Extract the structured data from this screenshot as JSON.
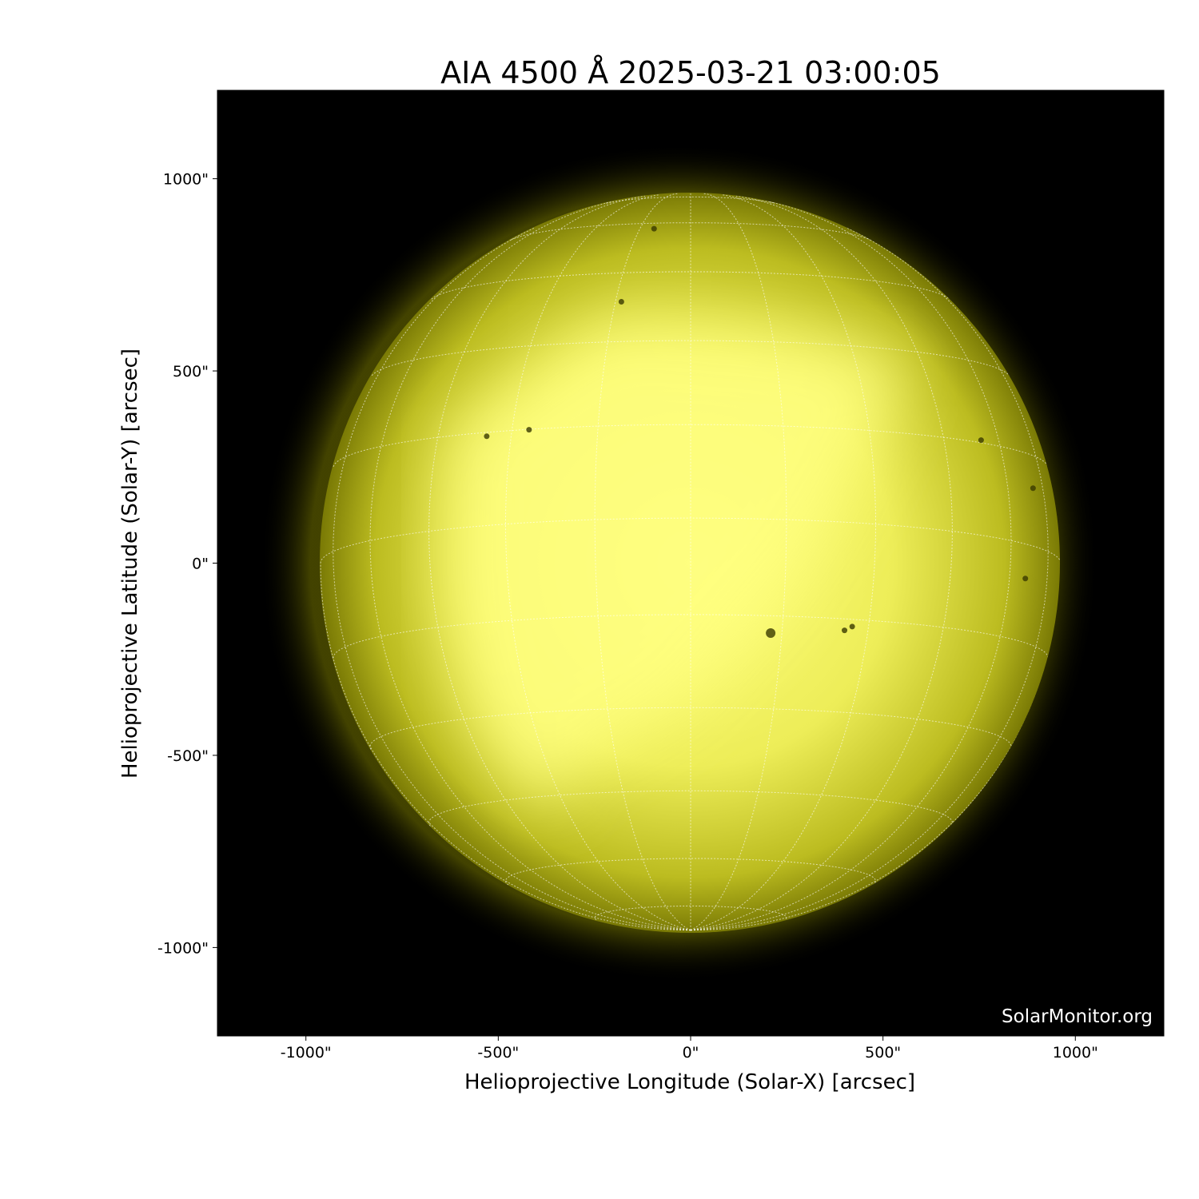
{
  "chart_data": {
    "type": "heatmap",
    "title": "AIA 4500 Å 2025-03-21 03:00:05",
    "xlabel": "Helioprojective Longitude (Solar-X) [arcsec]",
    "ylabel": "Helioprojective Latitude (Solar-Y) [arcsec]",
    "xlim": [
      -1230,
      1230
    ],
    "ylim": [
      -1230,
      1230
    ],
    "xticks": [
      -1000,
      -500,
      0,
      500,
      1000
    ],
    "yticks": [
      -1000,
      -500,
      0,
      500,
      1000
    ],
    "xtick_labels": [
      "-1000\"",
      "-500\"",
      "0\"",
      "500\"",
      "1000\""
    ],
    "ytick_labels": [
      "-1000\"",
      "-500\"",
      "0\"",
      "500\"",
      "1000\""
    ],
    "solar_radius_arcsec": 962,
    "grid": "heliographic, 15° spacing, dotted white",
    "colormap": "yellow (black to #ffff80)",
    "sunspots_arcsec": [
      [
        208,
        -182
      ],
      [
        -420,
        347
      ],
      [
        -530,
        330
      ],
      [
        870,
        -40
      ],
      [
        755,
        320
      ],
      [
        890,
        195
      ],
      [
        400,
        -175
      ],
      [
        420,
        -165
      ],
      [
        -180,
        680
      ],
      [
        -95,
        870
      ]
    ],
    "watermark": "SolarMonitor.org"
  }
}
